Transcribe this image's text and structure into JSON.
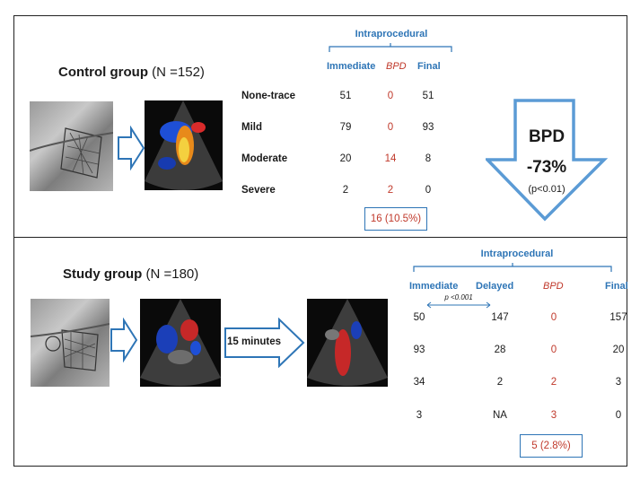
{
  "control": {
    "title_bold": "Control group",
    "title_rest": " (N =152)",
    "intraprocedural": "Intraprocedural",
    "headers": [
      "Immediate",
      "BPD",
      "Final"
    ],
    "rows": [
      {
        "label": "None-trace",
        "immediate": "51",
        "bpd": "0",
        "final": "51"
      },
      {
        "label": "Mild",
        "immediate": "79",
        "bpd": "0",
        "final": "93"
      },
      {
        "label": "Moderate",
        "immediate": "20",
        "bpd": "14",
        "final": "8"
      },
      {
        "label": "Severe",
        "immediate": "2",
        "bpd": "2",
        "final": "0"
      }
    ],
    "total": "16  (10.5%)"
  },
  "reduction": {
    "label": "BPD",
    "value": "-73%",
    "pvalue": "(p<0.01)"
  },
  "study": {
    "title_bold": "Study group",
    "title_rest": " (N =180)",
    "intraprocedural": "Intraprocedural",
    "headers": [
      "Immediate",
      "Delayed",
      "BPD",
      "Final"
    ],
    "pnote": "p <0.001",
    "arrow_label": "15 minutes",
    "rows": [
      {
        "immediate": "50",
        "delayed": "147",
        "bpd": "0",
        "final": "157"
      },
      {
        "immediate": "93",
        "delayed": "28",
        "bpd": "0",
        "final": "20"
      },
      {
        "immediate": "34",
        "delayed": "2",
        "bpd": "2",
        "final": "3"
      },
      {
        "immediate": "3",
        "delayed": "NA",
        "bpd": "3",
        "final": "0"
      }
    ],
    "total": "5 (2.8%)"
  },
  "colors": {
    "accent": "#2e75b6",
    "bpd_red": "#c0392b"
  }
}
